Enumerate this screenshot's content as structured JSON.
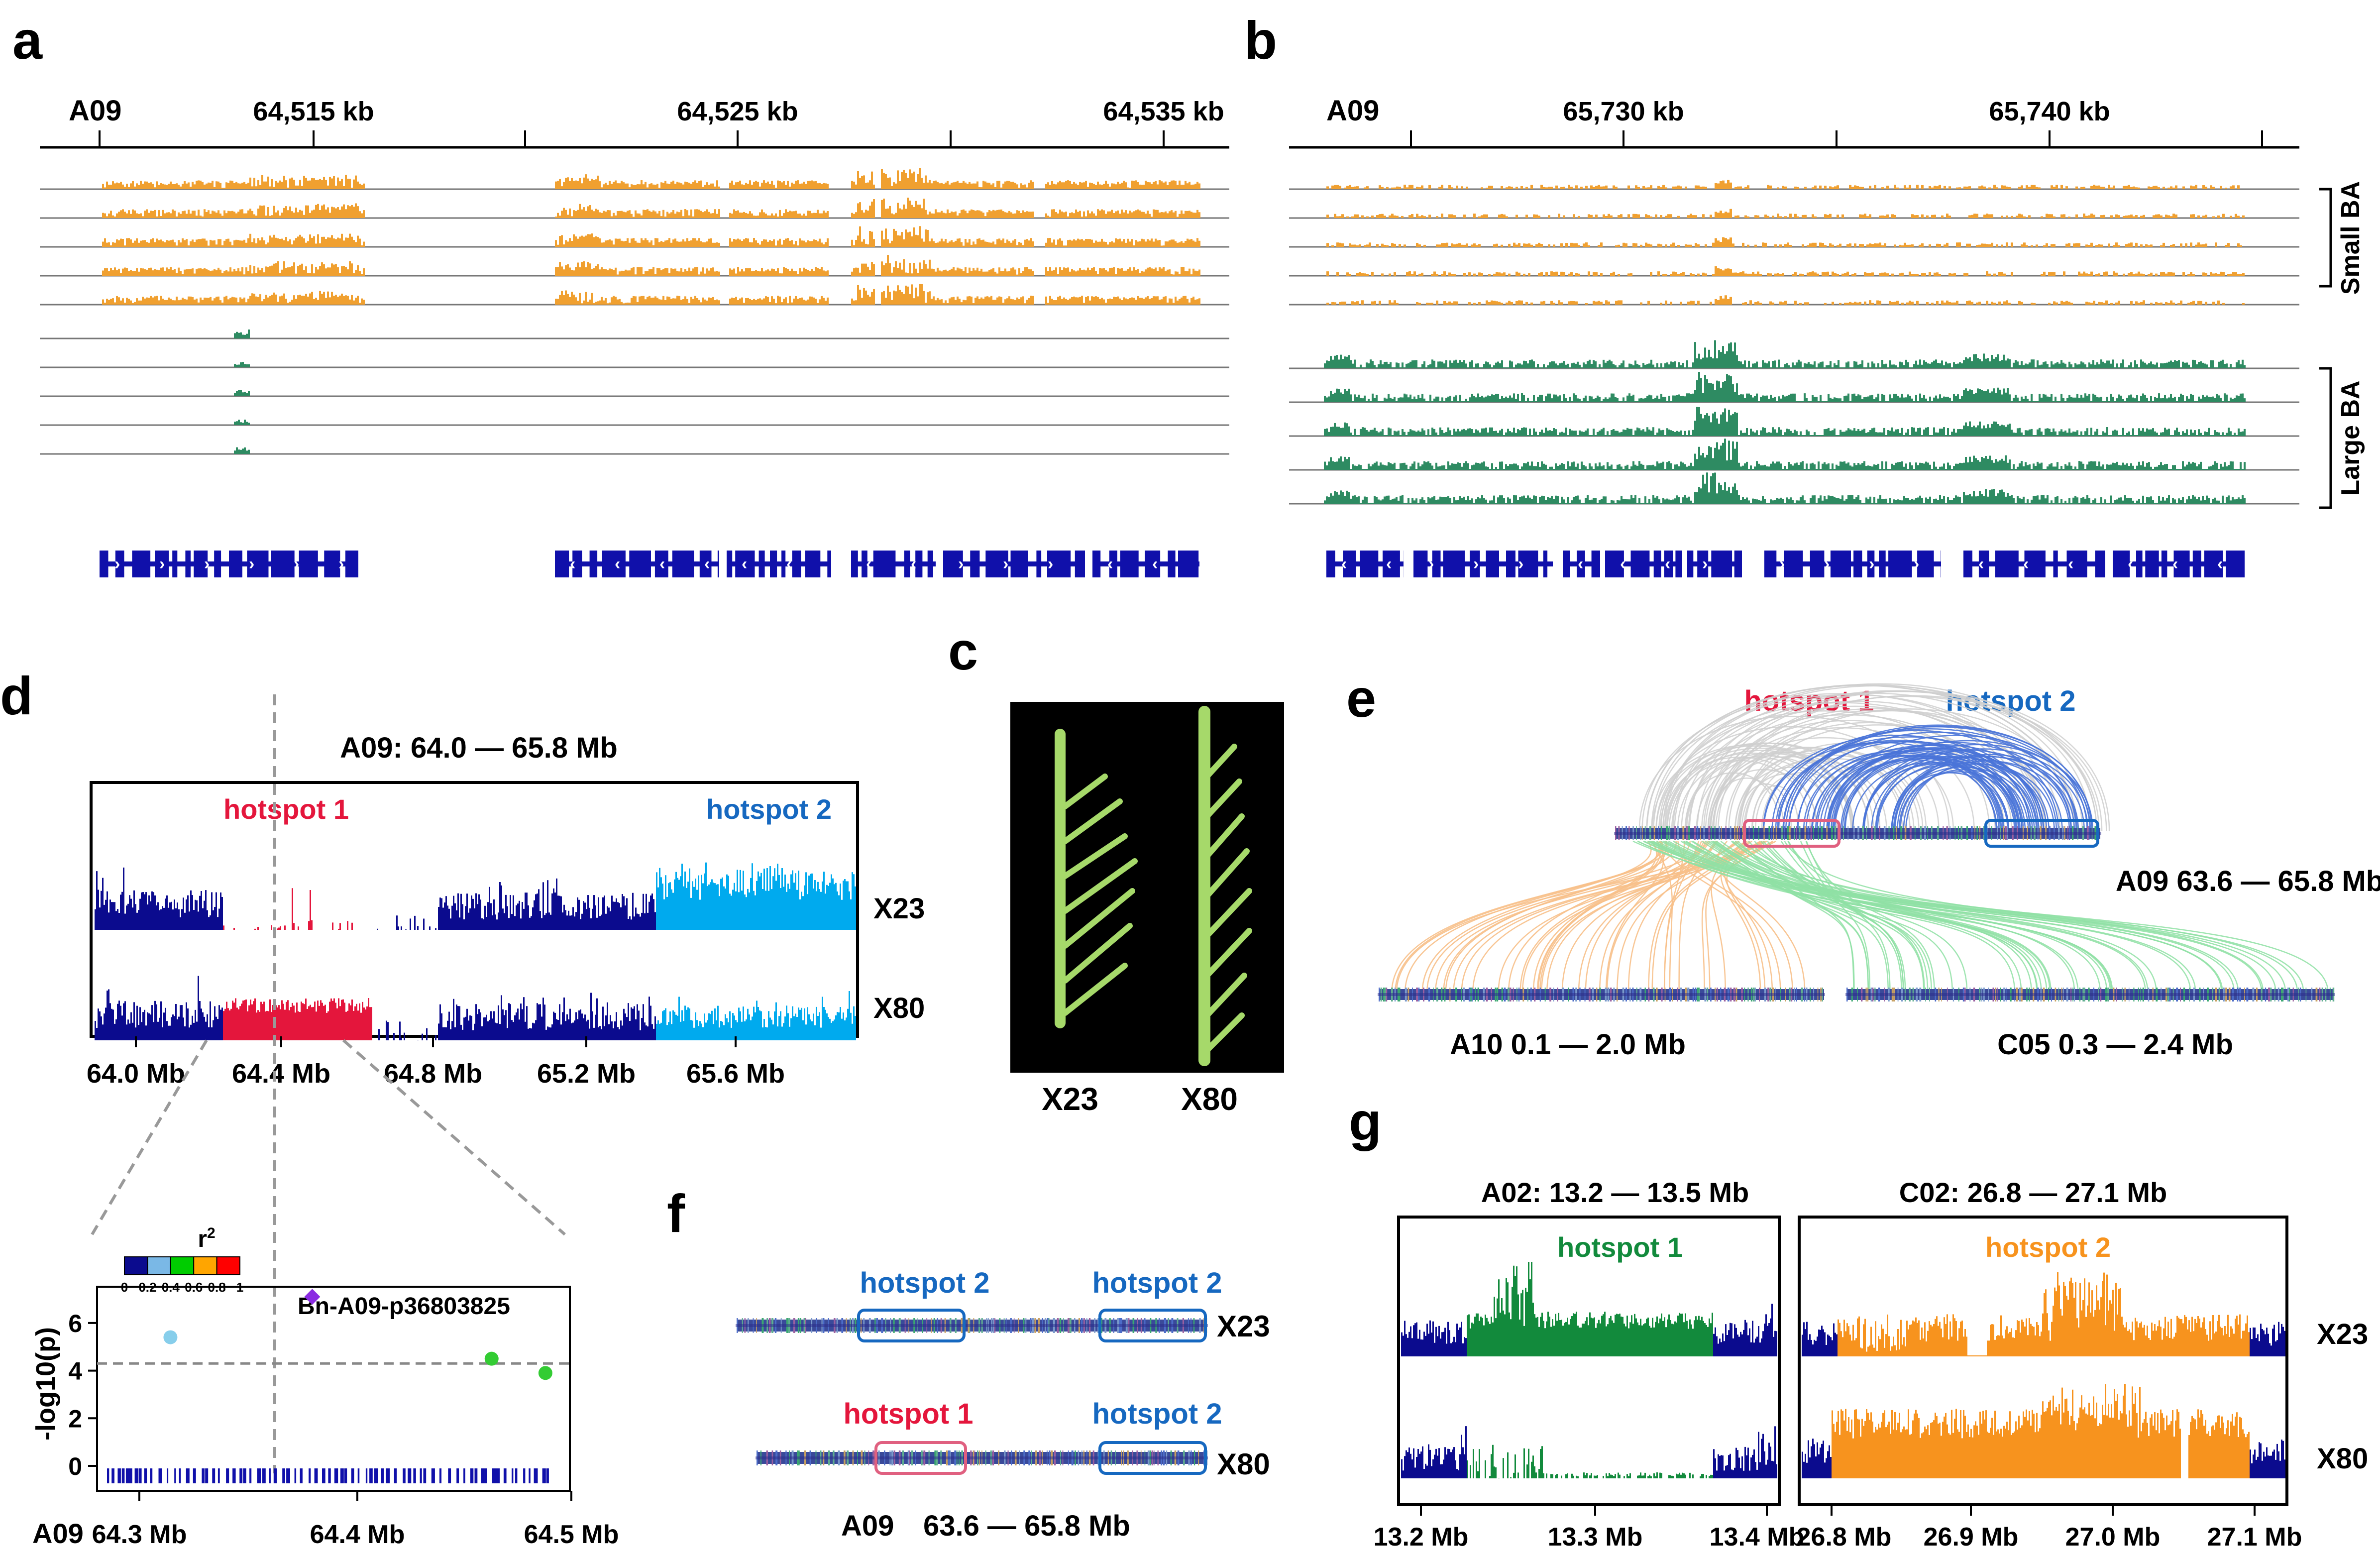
{
  "panel_letters": {
    "a": "a",
    "b": "b",
    "c": "c",
    "d": "d",
    "e": "e",
    "f": "f",
    "g": "g"
  },
  "colors": {
    "small_ba": "#f0a030",
    "large_ba": "#2e8b62",
    "gene": "#1010aa",
    "navy": "#0b0b8e",
    "light_blue": "#00aaee",
    "red": "#e4163c",
    "blue_label": "#1668c0",
    "green": "#128a3c",
    "orange": "#f7931e",
    "gray": "#cfcfcf",
    "link_blue": "#4a74d8",
    "link_orange": "#f7c08a",
    "link_green": "#8fe0a4"
  },
  "panel_a": {
    "chrom": "A09",
    "ticks": [
      "64,515 kb",
      "64,525 kb",
      "64,535 kb"
    ]
  },
  "panel_b": {
    "chrom": "A09",
    "ticks": [
      "65,730 kb",
      "65,740 kb"
    ],
    "group_small": "Small BA",
    "group_large": "Large BA"
  },
  "panel_c": {
    "samples": [
      "X23",
      "X80"
    ],
    "background": "#000000"
  },
  "panel_d": {
    "title": "A09: 64.0 — 65.8 Mb",
    "hotspot1": "hotspot 1",
    "hotspot2": "hotspot 2",
    "tracks": [
      "X23",
      "X80"
    ],
    "x_ticks": [
      "64.0 Mb",
      "64.4 Mb",
      "64.8 Mb",
      "65.2 Mb",
      "65.6 Mb"
    ],
    "zoom": {
      "legend_title": "r",
      "legend_exp": "2",
      "legend_ticks": [
        "0",
        "0.2",
        "0.4",
        "0.6",
        "0.8",
        "1"
      ],
      "legend_colors": [
        "#0b0b8e",
        "#7ab8e6",
        "#00cc00",
        "#ffa500",
        "#ff0000"
      ],
      "snp_label": "Bn-A09-p36803825",
      "ylabel": "-log10(p)",
      "y_ticks": [
        "0",
        "2",
        "4",
        "6"
      ],
      "ylim": [
        0,
        7.5
      ],
      "threshold": 4.3,
      "chrom": "A09",
      "x_ticks": [
        "64.3 Mb",
        "64.4 Mb",
        "64.5 Mb"
      ],
      "points": [
        {
          "x": 64.265,
          "y": 5.4,
          "color": "#87ceeb"
        },
        {
          "x": 64.352,
          "y": 7.1,
          "color": "#8a2be2"
        },
        {
          "x": 64.462,
          "y": 4.5,
          "color": "#33cc33"
        },
        {
          "x": 64.495,
          "y": 3.9,
          "color": "#33cc33"
        }
      ]
    }
  },
  "panel_e": {
    "hotspot1": "hotspot 1",
    "hotspot2": "hotspot 2",
    "main_label": "A09 63.6 — 65.8 Mb",
    "left_label": "A10 0.1 — 2.0 Mb",
    "right_label": "C05 0.3 — 2.4 Mb"
  },
  "panel_f": {
    "row1_labels": [
      "hotspot 2",
      "hotspot 2"
    ],
    "row2_labels": [
      "hotspot 1",
      "hotspot 2"
    ],
    "tracks": [
      "X23",
      "X80"
    ],
    "bottom_chrom": "A09",
    "bottom_range": "63.6 — 65.8 Mb"
  },
  "panel_g": {
    "left_title": "A02: 13.2 — 13.5 Mb",
    "right_title": "C02: 26.8 — 27.1 Mb",
    "left_hotspot": "hotspot 1",
    "right_hotspot": "hotspot 2",
    "tracks": [
      "X23",
      "X80"
    ],
    "left_x_ticks": [
      "13.2 Mb",
      "13.3 Mb",
      "13.4 Mb"
    ],
    "right_x_ticks": [
      "26.8 Mb",
      "26.9 Mb",
      "27.0 Mb",
      "27.1 Mb"
    ]
  }
}
